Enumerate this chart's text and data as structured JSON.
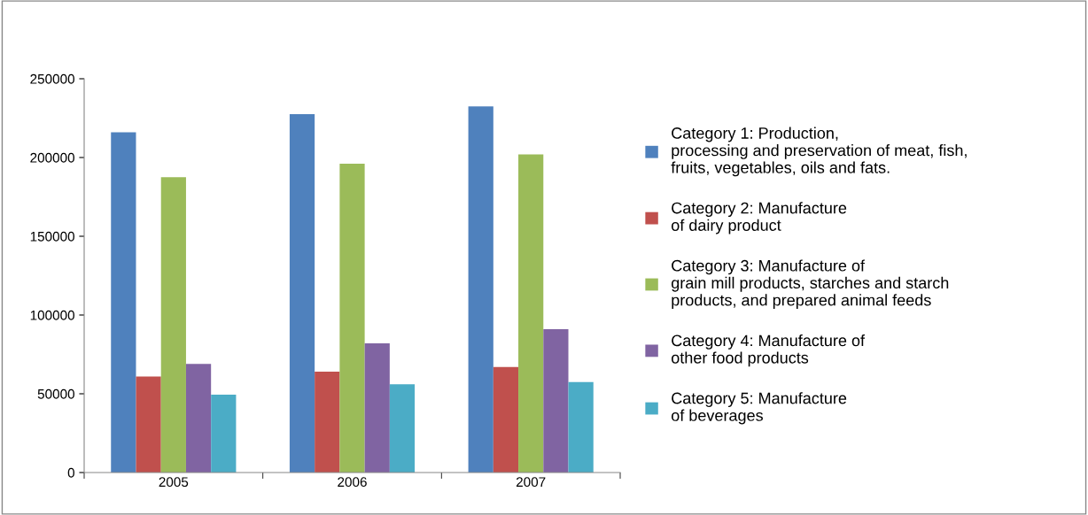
{
  "chart_data": {
    "type": "bar",
    "categories": [
      "2005",
      "2006",
      "2007"
    ],
    "series": [
      {
        "name": "Category 1: Production,\nprocessing and preservation of meat, fish,\nfruits, vegetables, oils and fats.",
        "color": "#4f81bd",
        "values": [
          216000,
          227500,
          232500
        ]
      },
      {
        "name": "Category 2: Manufacture\nof dairy product",
        "color": "#c0504d",
        "values": [
          61000,
          64000,
          67000
        ]
      },
      {
        "name": "Category 3: Manufacture of\ngrain mill products, starches and starch\nproducts, and prepared animal feeds",
        "color": "#9bbb59",
        "values": [
          187500,
          196000,
          202000
        ]
      },
      {
        "name": "Category 4: Manufacture of\nother food products",
        "color": "#8064a2",
        "values": [
          69000,
          82000,
          91000
        ]
      },
      {
        "name": "Category 5: Manufacture\nof beverages",
        "color": "#4bacc6",
        "values": [
          49500,
          56000,
          57500
        ]
      }
    ],
    "ylim": [
      0,
      250000
    ],
    "yticks": [
      0,
      50000,
      100000,
      150000,
      200000,
      250000
    ],
    "grid": false,
    "legend": "right"
  }
}
